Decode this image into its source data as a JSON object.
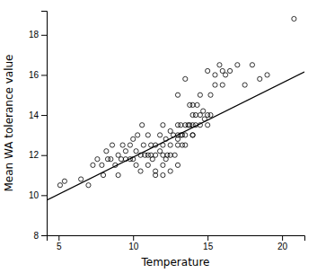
{
  "chart_data": {
    "type": "scatter",
    "xlabel": "Temperature",
    "ylabel": "Mean WA tolerance value",
    "xlim": [
      4.2,
      21.5
    ],
    "ylim": [
      8,
      19.2
    ],
    "xticks": [
      5,
      10,
      15,
      20
    ],
    "yticks": [
      8,
      10,
      12,
      14,
      16,
      18
    ],
    "series": [
      {
        "type": "scatter",
        "marker": "circle",
        "color": "black",
        "x": [
          5.1,
          5.4,
          6.5,
          7.0,
          7.3,
          7.6,
          7.9,
          8.0,
          8.2,
          8.3,
          8.5,
          8.6,
          8.8,
          9.0,
          9.0,
          9.2,
          9.3,
          9.5,
          9.5,
          9.8,
          9.8,
          10.0,
          10.0,
          10.2,
          10.2,
          10.3,
          10.5,
          10.5,
          10.6,
          10.7,
          10.8,
          11.0,
          11.0,
          11.0,
          11.2,
          11.2,
          11.3,
          11.5,
          11.5,
          11.5,
          11.5,
          11.8,
          11.8,
          12.0,
          12.0,
          12.0,
          12.0,
          12.0,
          12.2,
          12.2,
          12.3,
          12.5,
          12.5,
          12.5,
          12.5,
          12.7,
          12.8,
          13.0,
          13.0,
          13.0,
          13.0,
          13.0,
          13.0,
          13.2,
          13.2,
          13.3,
          13.3,
          13.5,
          13.5,
          13.5,
          13.5,
          13.7,
          13.8,
          13.8,
          14.0,
          14.0,
          14.0,
          14.0,
          14.0,
          14.2,
          14.2,
          14.3,
          14.5,
          14.5,
          14.5,
          14.7,
          14.8,
          15.0,
          15.0,
          15.0,
          15.2,
          15.2,
          15.5,
          15.5,
          15.8,
          16.0,
          16.0,
          16.2,
          16.5,
          17.0,
          17.5,
          18.0,
          18.5,
          19.0,
          20.8
        ],
        "values": [
          10.5,
          10.7,
          10.8,
          10.5,
          11.5,
          11.8,
          11.5,
          11.0,
          12.2,
          11.8,
          11.8,
          12.5,
          11.5,
          11.0,
          12.0,
          11.8,
          12.5,
          11.8,
          12.2,
          11.8,
          12.5,
          11.8,
          12.8,
          11.5,
          12.2,
          13.0,
          11.2,
          12.0,
          13.5,
          12.5,
          12.0,
          11.5,
          12.0,
          13.0,
          12.0,
          12.5,
          11.8,
          11.0,
          12.0,
          12.5,
          11.2,
          12.2,
          13.0,
          11.0,
          11.5,
          12.0,
          12.5,
          13.5,
          11.8,
          12.8,
          12.0,
          11.2,
          12.0,
          12.5,
          13.2,
          13.0,
          12.0,
          12.5,
          12.8,
          13.0,
          13.5,
          11.5,
          15.0,
          13.0,
          13.5,
          13.0,
          12.5,
          12.5,
          13.0,
          13.5,
          15.8,
          13.5,
          13.5,
          14.5,
          13.0,
          13.5,
          14.0,
          14.5,
          13.0,
          13.5,
          14.0,
          14.5,
          14.0,
          15.0,
          13.5,
          14.2,
          13.8,
          13.5,
          14.0,
          16.2,
          14.0,
          15.0,
          15.5,
          16.0,
          16.5,
          15.5,
          16.2,
          16.0,
          16.2,
          16.5,
          15.5,
          16.5,
          15.8,
          16.0,
          18.8
        ]
      },
      {
        "type": "line",
        "line_style": "solid",
        "color": "black",
        "x": [
          4.2,
          21.5
        ],
        "values": [
          9.754,
          16.155
        ]
      }
    ]
  }
}
